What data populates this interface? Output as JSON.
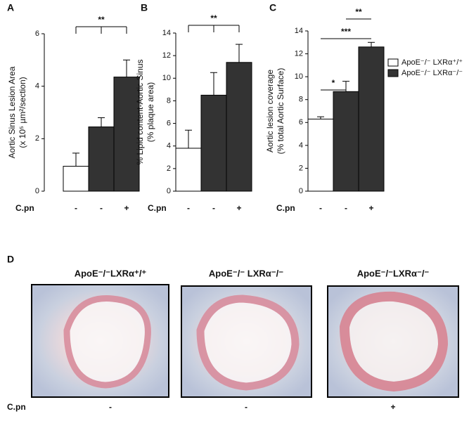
{
  "chart_data": [
    {
      "type": "bar",
      "panel": "A",
      "ylabel": [
        "Aortic Sinus Lesion Area",
        "(x 10⁵ µm²/section)"
      ],
      "xlabel": "C.pn",
      "categories": [
        "-",
        "-",
        "+"
      ],
      "values": [
        0.95,
        2.45,
        4.35
      ],
      "errors": [
        0.5,
        0.35,
        0.65
      ],
      "colors": [
        "#ffffff",
        "#333333",
        "#333333"
      ],
      "ylim": [
        0,
        6
      ],
      "yticks": [
        0,
        2,
        4,
        6
      ],
      "annotations": [
        {
          "text": "**",
          "from": 0,
          "to": 2
        }
      ]
    },
    {
      "type": "bar",
      "panel": "B",
      "ylabel": [
        "% Lipid content-Aortic Sinus",
        "(% plaque area)"
      ],
      "xlabel": "C.pn",
      "categories": [
        "-",
        "-",
        "+"
      ],
      "values": [
        3.8,
        8.5,
        11.4
      ],
      "errors": [
        1.6,
        2.0,
        1.6
      ],
      "colors": [
        "#ffffff",
        "#333333",
        "#333333"
      ],
      "ylim": [
        0,
        14
      ],
      "yticks": [
        0,
        2,
        4,
        6,
        8,
        10,
        12,
        14
      ],
      "annotations": [
        {
          "text": "**",
          "from": 0,
          "to": 2
        }
      ]
    },
    {
      "type": "bar",
      "panel": "C",
      "ylabel": [
        "Aortic lesion coverage",
        "(%  total Aortic Surface)"
      ],
      "xlabel": "C.pn",
      "categories": [
        "-",
        "-",
        "+"
      ],
      "values": [
        6.3,
        8.7,
        12.6
      ],
      "errors": [
        0.2,
        0.9,
        0.4
      ],
      "colors": [
        "#ffffff",
        "#333333",
        "#333333"
      ],
      "ylim": [
        0,
        14
      ],
      "yticks": [
        0,
        2,
        4,
        6,
        8,
        10,
        12,
        14
      ],
      "annotations": [
        {
          "text": "*",
          "from": 0,
          "to": 1
        },
        {
          "text": "***",
          "from": 0,
          "to": 2
        },
        {
          "text": "**",
          "from": 1,
          "to": 2
        }
      ],
      "legend": [
        {
          "name": "ApoE⁻/⁻ LXRα⁺/⁺",
          "color": "#ffffff"
        },
        {
          "name": "ApoE⁻/⁻ LXRα⁻/⁻",
          "color": "#333333"
        }
      ]
    }
  ],
  "panel_d": {
    "panel": "D",
    "titles": [
      "ApoE⁻/⁻LXRα⁺/⁺",
      "ApoE⁻/⁻ LXRα⁻/⁻",
      "ApoE⁻/⁻LXRα⁻/⁻"
    ],
    "xlabel": "C.pn",
    "treatments": [
      "-",
      "-",
      "+"
    ]
  }
}
